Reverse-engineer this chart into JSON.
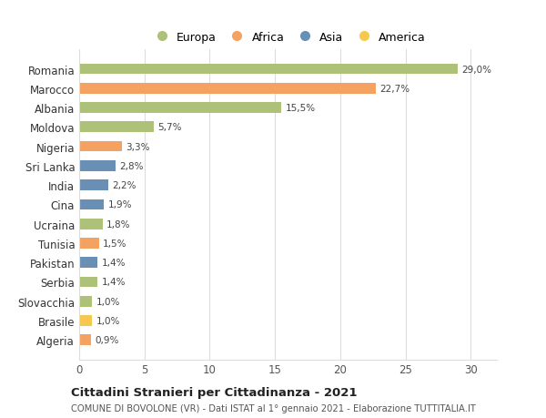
{
  "countries": [
    "Romania",
    "Marocco",
    "Albania",
    "Moldova",
    "Nigeria",
    "Sri Lanka",
    "India",
    "Cina",
    "Ucraina",
    "Tunisia",
    "Pakistan",
    "Serbia",
    "Slovacchia",
    "Brasile",
    "Algeria"
  ],
  "values": [
    29.0,
    22.7,
    15.5,
    5.7,
    3.3,
    2.8,
    2.2,
    1.9,
    1.8,
    1.5,
    1.4,
    1.4,
    1.0,
    1.0,
    0.9
  ],
  "labels": [
    "29,0%",
    "22,7%",
    "15,5%",
    "5,7%",
    "3,3%",
    "2,8%",
    "2,2%",
    "1,9%",
    "1,8%",
    "1,5%",
    "1,4%",
    "1,4%",
    "1,0%",
    "1,0%",
    "0,9%"
  ],
  "continents": [
    "Europa",
    "Africa",
    "Europa",
    "Europa",
    "Africa",
    "Asia",
    "Asia",
    "Asia",
    "Europa",
    "Africa",
    "Asia",
    "Europa",
    "Europa",
    "America",
    "Africa"
  ],
  "colors": {
    "Europa": "#adc178",
    "Africa": "#f4a261",
    "Asia": "#6a8fb5",
    "America": "#f6c94e"
  },
  "legend_order": [
    "Europa",
    "Africa",
    "Asia",
    "America"
  ],
  "xlim": [
    0,
    32
  ],
  "xticks": [
    0,
    5,
    10,
    15,
    20,
    25,
    30
  ],
  "title": "Cittadini Stranieri per Cittadinanza - 2021",
  "subtitle": "COMUNE DI BOVOLONE (VR) - Dati ISTAT al 1° gennaio 2021 - Elaborazione TUTTITALIA.IT",
  "background_color": "#ffffff",
  "grid_color": "#dddddd"
}
